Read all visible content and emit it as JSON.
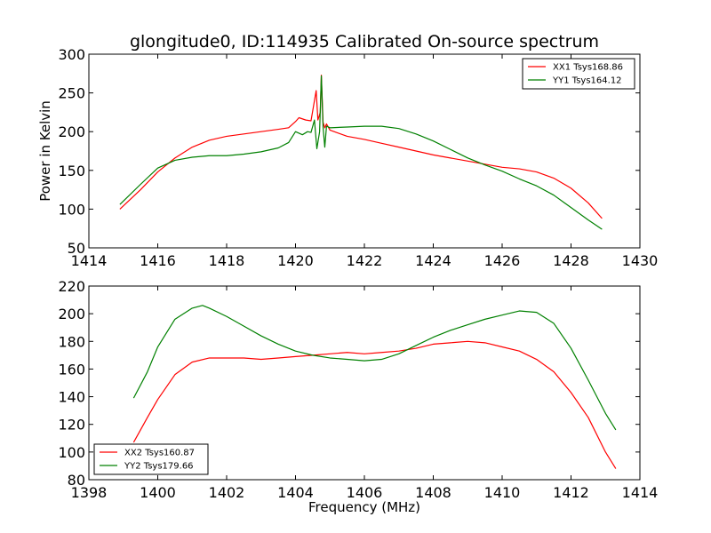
{
  "chart_data": [
    {
      "type": "line",
      "title": "glongitude0, ID:114935 Calibrated On-source spectrum",
      "xlabel": "",
      "ylabel": "Power in Kelvin",
      "xlim": [
        1414,
        1430
      ],
      "ylim": [
        50,
        300
      ],
      "xticks": [
        "1414",
        "1416",
        "1418",
        "1420",
        "1422",
        "1424",
        "1426",
        "1428",
        "1430"
      ],
      "yticks": [
        "50",
        "100",
        "150",
        "200",
        "250",
        "300"
      ],
      "legend_position": "top-right",
      "series": [
        {
          "name": "XX1 Tsys168.86",
          "color": "#ff0000",
          "points": [
            [
              1414.9,
              100
            ],
            [
              1415.5,
              125
            ],
            [
              1416,
              148
            ],
            [
              1416.5,
              166
            ],
            [
              1417,
              180
            ],
            [
              1417.5,
              189
            ],
            [
              1418,
              194
            ],
            [
              1418.5,
              197
            ],
            [
              1419,
              200
            ],
            [
              1419.5,
              203
            ],
            [
              1419.8,
              205
            ],
            [
              1420.0,
              213
            ],
            [
              1420.1,
              218
            ],
            [
              1420.3,
              215
            ],
            [
              1420.45,
              214
            ],
            [
              1420.55,
              240
            ],
            [
              1420.6,
              253
            ],
            [
              1420.65,
              215
            ],
            [
              1420.72,
              225
            ],
            [
              1420.75,
              273
            ],
            [
              1420.8,
              212
            ],
            [
              1420.85,
              205
            ],
            [
              1420.9,
              210
            ],
            [
              1421,
              202
            ],
            [
              1421.5,
              194
            ],
            [
              1422,
              190
            ],
            [
              1422.5,
              185
            ],
            [
              1423,
              180
            ],
            [
              1423.5,
              175
            ],
            [
              1424,
              170
            ],
            [
              1424.5,
              166
            ],
            [
              1425,
              162
            ],
            [
              1425.5,
              158
            ],
            [
              1426,
              154
            ],
            [
              1426.5,
              152
            ],
            [
              1427,
              148
            ],
            [
              1427.5,
              140
            ],
            [
              1428,
              127
            ],
            [
              1428.5,
              108
            ],
            [
              1428.9,
              88
            ]
          ]
        },
        {
          "name": "YY1 Tsys164.12",
          "color": "#008000",
          "points": [
            [
              1414.9,
              106
            ],
            [
              1415.5,
              132
            ],
            [
              1416,
              153
            ],
            [
              1416.5,
              163
            ],
            [
              1417,
              167
            ],
            [
              1417.5,
              169
            ],
            [
              1418,
              169
            ],
            [
              1418.5,
              171
            ],
            [
              1419,
              174
            ],
            [
              1419.5,
              179
            ],
            [
              1419.8,
              186
            ],
            [
              1420.0,
              200
            ],
            [
              1420.2,
              196
            ],
            [
              1420.35,
              200
            ],
            [
              1420.45,
              199
            ],
            [
              1420.55,
              215
            ],
            [
              1420.62,
              178
            ],
            [
              1420.7,
              200
            ],
            [
              1420.75,
              272
            ],
            [
              1420.8,
              206
            ],
            [
              1420.85,
              180
            ],
            [
              1420.9,
              207
            ],
            [
              1421,
              205
            ],
            [
              1421.5,
              206
            ],
            [
              1422,
              207
            ],
            [
              1422.5,
              207
            ],
            [
              1423,
              204
            ],
            [
              1423.5,
              197
            ],
            [
              1424,
              188
            ],
            [
              1424.5,
              177
            ],
            [
              1425,
              166
            ],
            [
              1425.5,
              157
            ],
            [
              1426,
              149
            ],
            [
              1426.5,
              139
            ],
            [
              1427,
              130
            ],
            [
              1427.5,
              118
            ],
            [
              1428,
              102
            ],
            [
              1428.5,
              86
            ],
            [
              1428.9,
              74
            ]
          ]
        }
      ]
    },
    {
      "type": "line",
      "title": "",
      "xlabel": "Frequency (MHz)",
      "ylabel": "",
      "xlim": [
        1398,
        1414
      ],
      "ylim": [
        80,
        220
      ],
      "xticks": [
        "1398",
        "1400",
        "1402",
        "1404",
        "1406",
        "1408",
        "1410",
        "1412",
        "1414"
      ],
      "yticks": [
        "80",
        "100",
        "120",
        "140",
        "160",
        "180",
        "200",
        "220"
      ],
      "legend_position": "bottom-left",
      "series": [
        {
          "name": "XX2 Tsys160.87",
          "color": "#ff0000",
          "points": [
            [
              1399.3,
              107
            ],
            [
              1399.7,
              125
            ],
            [
              1400,
              138
            ],
            [
              1400.5,
              156
            ],
            [
              1401,
              165
            ],
            [
              1401.5,
              168
            ],
            [
              1402,
              168
            ],
            [
              1402.5,
              168
            ],
            [
              1403,
              167
            ],
            [
              1403.5,
              168
            ],
            [
              1404,
              169
            ],
            [
              1404.5,
              170
            ],
            [
              1405,
              171
            ],
            [
              1405.5,
              172
            ],
            [
              1406,
              171
            ],
            [
              1406.5,
              172
            ],
            [
              1407,
              173
            ],
            [
              1407.5,
              175
            ],
            [
              1408,
              178
            ],
            [
              1408.5,
              179
            ],
            [
              1409,
              180
            ],
            [
              1409.5,
              179
            ],
            [
              1410,
              176
            ],
            [
              1410.5,
              173
            ],
            [
              1411,
              167
            ],
            [
              1411.5,
              158
            ],
            [
              1412,
              143
            ],
            [
              1412.5,
              125
            ],
            [
              1413,
              100
            ],
            [
              1413.3,
              88
            ]
          ]
        },
        {
          "name": "YY2 Tsys179.66",
          "color": "#008000",
          "points": [
            [
              1399.3,
              139
            ],
            [
              1399.7,
              158
            ],
            [
              1400,
              176
            ],
            [
              1400.5,
              196
            ],
            [
              1401,
              204
            ],
            [
              1401.3,
              206
            ],
            [
              1401.5,
              204
            ],
            [
              1402,
              198
            ],
            [
              1402.5,
              191
            ],
            [
              1403,
              184
            ],
            [
              1403.5,
              178
            ],
            [
              1404,
              173
            ],
            [
              1404.5,
              170
            ],
            [
              1405,
              168
            ],
            [
              1405.5,
              167
            ],
            [
              1406,
              166
            ],
            [
              1406.5,
              167
            ],
            [
              1407,
              171
            ],
            [
              1407.5,
              177
            ],
            [
              1408,
              183
            ],
            [
              1408.5,
              188
            ],
            [
              1409,
              192
            ],
            [
              1409.5,
              196
            ],
            [
              1410,
              199
            ],
            [
              1410.5,
              202
            ],
            [
              1411,
              201
            ],
            [
              1411.5,
              193
            ],
            [
              1412,
              175
            ],
            [
              1412.5,
              152
            ],
            [
              1413,
              128
            ],
            [
              1413.3,
              116
            ]
          ]
        }
      ]
    }
  ]
}
